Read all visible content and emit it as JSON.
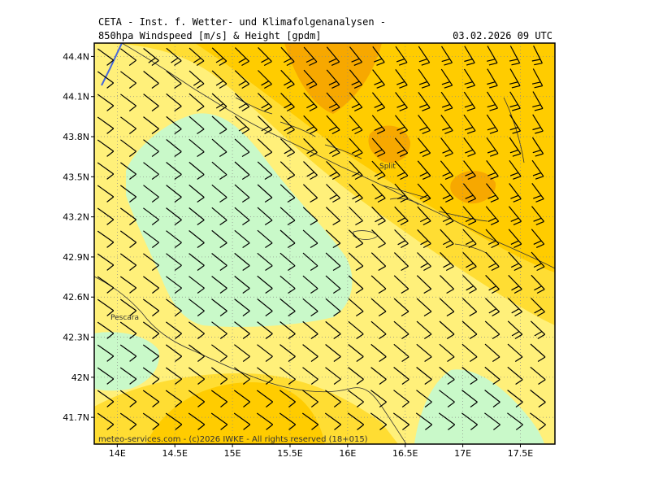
{
  "header": {
    "title": "CETA - Inst. f. Wetter- und Klimafolgenanalysen -",
    "subtitle": "850hpa Windspeed [m/s] & Height [gpdm]",
    "datetime": "03.02.2026 09 UTC"
  },
  "map": {
    "lon_range": [
      13.8,
      17.8
    ],
    "lat_range": [
      41.5,
      44.5
    ],
    "lat_ticks": [
      "44.4N",
      "44.1N",
      "43.8N",
      "43.5N",
      "43.2N",
      "42.9N",
      "42.6N",
      "42.3N",
      "42N",
      "41.7N"
    ],
    "lon_ticks": [
      "14E",
      "14.5E",
      "15E",
      "15.5E",
      "16E",
      "16.5E",
      "17E",
      "17.5E"
    ],
    "grid": true,
    "colors": {
      "green": "#c9f9c9",
      "light_yellow": "#fff07a",
      "yellow": "#ffdd33",
      "gold": "#ffcc00",
      "orange": "#f7a800",
      "coast": "#333333",
      "wind_barbs": "#000000"
    },
    "cities": [
      {
        "name": "Split"
      },
      {
        "name": "Pescara"
      }
    ],
    "footer": "meteo-services.com - (c)2026 IWKE - All rights reserved (18+015)"
  }
}
